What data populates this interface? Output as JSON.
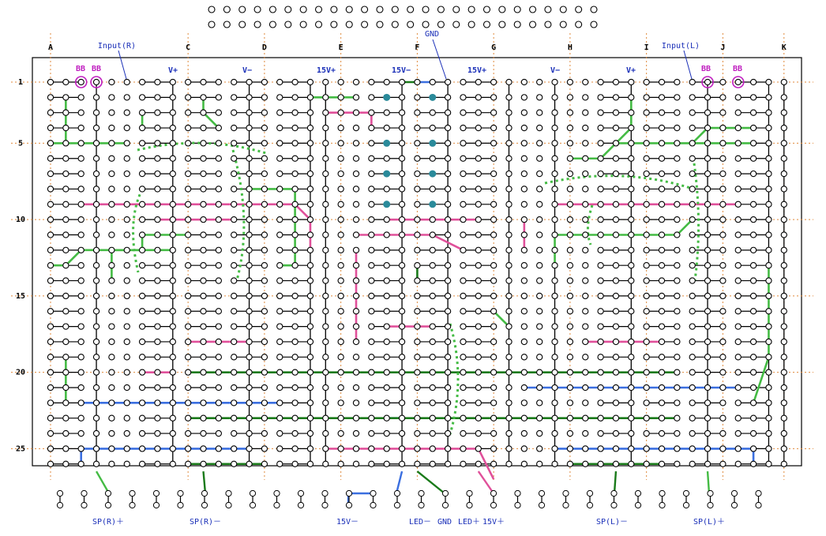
{
  "columns": [
    "A",
    "C",
    "D",
    "E",
    "F",
    "G",
    "H",
    "I",
    "J",
    "K"
  ],
  "rows": [
    "1",
    "5",
    "10",
    "15",
    "20",
    "25"
  ],
  "top_labels": {
    "bb": [
      "BB",
      "BB",
      "BB",
      "BB"
    ],
    "input_r": "Input(R)",
    "gnd": "GND",
    "input_l": "Input(L)",
    "supplies": [
      "V+",
      "V−",
      "15V+",
      "15V−",
      "15V+",
      "V−",
      "V+"
    ]
  },
  "bottom_labels": [
    "SP(R)＋",
    "SP(R)－",
    "15V－",
    "LED－",
    "GND",
    "LED＋",
    "15V＋",
    "SP(L)－",
    "SP(L)＋"
  ]
}
